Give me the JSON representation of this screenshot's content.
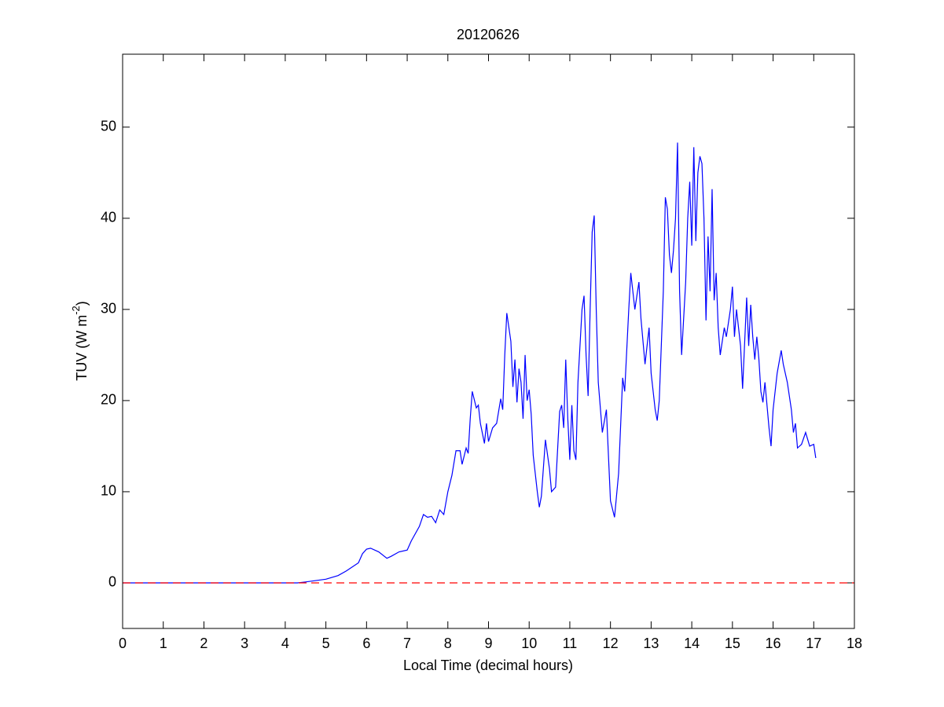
{
  "chart_data": {
    "type": "line",
    "title": "20120626",
    "x_label": "Local Time (decimal hours)",
    "y_label": "TUV (W m",
    "y_label_sup": "-2",
    "y_label_end": ")",
    "xlim": [
      0,
      18
    ],
    "ylim": [
      -5,
      58
    ],
    "xticks": [
      0,
      1,
      2,
      3,
      4,
      5,
      6,
      7,
      8,
      9,
      10,
      11,
      12,
      13,
      14,
      15,
      16,
      17,
      18
    ],
    "yticks": [
      0,
      10,
      20,
      30,
      40,
      50
    ],
    "grid": false,
    "series": [
      {
        "color": "#0000ff",
        "x": [
          0,
          4.3,
          4.5,
          5.0,
          5.3,
          5.5,
          5.8,
          5.9,
          6.0,
          6.1,
          6.3,
          6.5,
          6.6,
          6.8,
          7.0,
          7.1,
          7.3,
          7.4,
          7.5,
          7.6,
          7.7,
          7.8,
          7.9,
          8.0,
          8.1,
          8.2,
          8.3,
          8.35,
          8.45,
          8.5,
          8.55,
          8.6,
          8.7,
          8.75,
          8.8,
          8.9,
          8.95,
          9.0,
          9.1,
          9.2,
          9.3,
          9.35,
          9.4,
          9.45,
          9.55,
          9.6,
          9.65,
          9.7,
          9.75,
          9.8,
          9.85,
          9.9,
          9.95,
          10.0,
          10.05,
          10.1,
          10.2,
          10.25,
          10.3,
          10.4,
          10.5,
          10.55,
          10.65,
          10.75,
          10.8,
          10.85,
          10.9,
          10.95,
          11.0,
          11.05,
          11.1,
          11.15,
          11.2,
          11.3,
          11.35,
          11.4,
          11.45,
          11.5,
          11.55,
          11.6,
          11.65,
          11.7,
          11.8,
          11.9,
          11.95,
          12.0,
          12.1,
          12.2,
          12.3,
          12.35,
          12.45,
          12.5,
          12.6,
          12.7,
          12.75,
          12.85,
          12.95,
          13.0,
          13.1,
          13.15,
          13.2,
          13.3,
          13.35,
          13.4,
          13.45,
          13.5,
          13.55,
          13.6,
          13.65,
          13.7,
          13.75,
          13.85,
          13.9,
          13.95,
          14.0,
          14.05,
          14.1,
          14.15,
          14.2,
          14.25,
          14.3,
          14.35,
          14.4,
          14.45,
          14.5,
          14.55,
          14.6,
          14.65,
          14.7,
          14.8,
          14.85,
          14.95,
          15.0,
          15.05,
          15.1,
          15.2,
          15.25,
          15.35,
          15.4,
          15.45,
          15.5,
          15.55,
          15.6,
          15.65,
          15.7,
          15.75,
          15.8,
          15.9,
          15.95,
          16.0,
          16.1,
          16.2,
          16.25,
          16.3,
          16.35,
          16.45,
          16.5,
          16.55,
          16.6,
          16.7,
          16.8,
          16.9,
          17.0,
          17.05
        ],
        "values": [
          0,
          0,
          0.1,
          0.4,
          0.8,
          1.3,
          2.2,
          3.2,
          3.7,
          3.8,
          3.4,
          2.7,
          2.9,
          3.4,
          3.6,
          4.6,
          6.2,
          7.5,
          7.2,
          7.3,
          6.6,
          8.0,
          7.5,
          10,
          11.8,
          14.5,
          14.5,
          13.0,
          14.8,
          14.2,
          18,
          21,
          19.2,
          19.5,
          17.5,
          15.3,
          17.5,
          15.5,
          17,
          17.5,
          20.2,
          19,
          25,
          29.6,
          26.5,
          21.5,
          24.5,
          19.8,
          23.5,
          22,
          18.0,
          25,
          20,
          21.2,
          18.5,
          14,
          10,
          8.3,
          9.5,
          15.7,
          12.5,
          10,
          10.5,
          18.8,
          19.5,
          17,
          24.5,
          18,
          13.5,
          19.5,
          14.5,
          13.5,
          22,
          30,
          31.5,
          25,
          20.5,
          30,
          38.5,
          40.3,
          30,
          22,
          16.5,
          19,
          14,
          9,
          7.2,
          12,
          22.5,
          21,
          30,
          34,
          30,
          33,
          29,
          24,
          28,
          23,
          19,
          17.8,
          20,
          32,
          42.3,
          41,
          36,
          34,
          36.5,
          40,
          48.3,
          32,
          25,
          33,
          40,
          44,
          37,
          47.8,
          37.5,
          45,
          46.8,
          46,
          40,
          28.8,
          38,
          32,
          43.2,
          31,
          34,
          28,
          25,
          28,
          27,
          30,
          32.5,
          27,
          30,
          26,
          21.3,
          31.3,
          26,
          30.5,
          27,
          24.5,
          27,
          24.6,
          21,
          19.8,
          22,
          17,
          15,
          19,
          23,
          25.5,
          24,
          23,
          22,
          19,
          16.5,
          17.5,
          14.8,
          15.2,
          16.5,
          15,
          15.2,
          13.7
        ]
      },
      {
        "color": "#ff0000",
        "dash": true,
        "x": [
          0,
          18
        ],
        "values": [
          0,
          0
        ]
      }
    ]
  }
}
